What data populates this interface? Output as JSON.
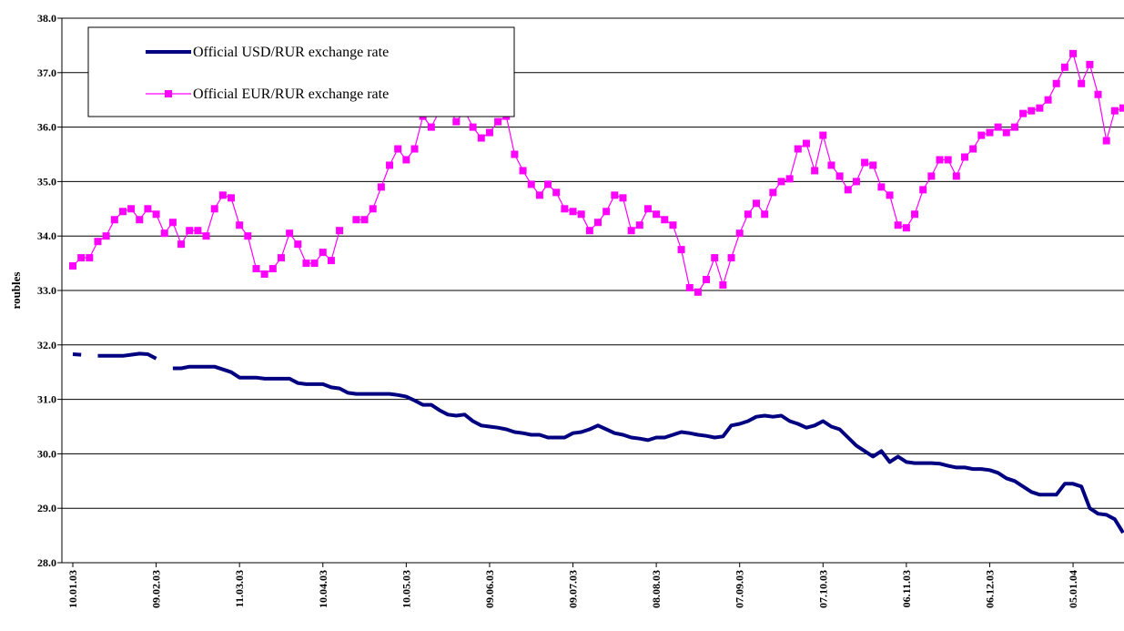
{
  "chart_data": {
    "type": "line",
    "ylabel": "roubles",
    "categories": [
      "10.01.03",
      null,
      null,
      null,
      null,
      null,
      null,
      null,
      null,
      null,
      "09.02.03",
      null,
      null,
      null,
      null,
      null,
      null,
      null,
      null,
      null,
      "11.03.03",
      null,
      null,
      null,
      null,
      null,
      null,
      null,
      null,
      null,
      "10.04.03",
      null,
      null,
      null,
      null,
      null,
      null,
      null,
      null,
      null,
      "10.05.03",
      null,
      null,
      null,
      null,
      null,
      null,
      null,
      null,
      null,
      "09.06.03",
      null,
      null,
      null,
      null,
      null,
      null,
      null,
      null,
      null,
      "09.07.03",
      null,
      null,
      null,
      null,
      null,
      null,
      null,
      null,
      null,
      "08.08.03",
      null,
      null,
      null,
      null,
      null,
      null,
      null,
      null,
      null,
      "07.09.03",
      null,
      null,
      null,
      null,
      null,
      null,
      null,
      null,
      null,
      "07.10.03",
      null,
      null,
      null,
      null,
      null,
      null,
      null,
      null,
      null,
      "06.11.03",
      null,
      null,
      null,
      null,
      null,
      null,
      null,
      null,
      null,
      "06.12.03",
      null,
      null,
      null,
      null,
      null,
      null,
      null,
      null,
      null,
      "05.01.04",
      null,
      null,
      null,
      null,
      null,
      null
    ],
    "series": [
      {
        "name": "Official USD/RUR exchange rate",
        "color": "#000080",
        "marker": false,
        "values": [
          31.83,
          31.82,
          null,
          31.8,
          31.8,
          31.8,
          31.8,
          31.82,
          31.84,
          31.83,
          31.75,
          null,
          31.57,
          31.57,
          31.6,
          31.6,
          31.6,
          31.6,
          31.55,
          31.5,
          31.4,
          31.4,
          31.4,
          31.38,
          31.38,
          31.38,
          31.38,
          31.3,
          31.28,
          31.28,
          31.28,
          31.22,
          31.2,
          31.12,
          31.1,
          31.1,
          31.1,
          31.1,
          31.1,
          31.08,
          31.05,
          30.98,
          30.9,
          30.9,
          30.8,
          30.72,
          30.7,
          30.72,
          30.6,
          30.52,
          30.5,
          30.48,
          30.45,
          30.4,
          30.38,
          30.35,
          30.35,
          30.3,
          30.3,
          30.3,
          30.38,
          30.4,
          30.45,
          30.52,
          30.45,
          30.38,
          30.35,
          30.3,
          30.28,
          30.25,
          30.3,
          30.3,
          30.35,
          30.4,
          30.38,
          30.35,
          30.33,
          30.3,
          30.32,
          30.52,
          30.55,
          30.6,
          30.68,
          30.7,
          30.68,
          30.7,
          30.6,
          30.55,
          30.48,
          30.52,
          30.6,
          30.5,
          30.45,
          30.3,
          30.15,
          30.05,
          29.95,
          30.05,
          29.85,
          29.95,
          29.85,
          29.83,
          29.83,
          29.83,
          29.82,
          29.78,
          29.75,
          29.75,
          29.72,
          29.72,
          29.7,
          29.65,
          29.55,
          29.5,
          29.4,
          29.3,
          29.25,
          29.25,
          29.25,
          29.45,
          29.45,
          29.4,
          29.0,
          28.9,
          28.88,
          28.8,
          28.55
        ]
      },
      {
        "name": "Official EUR/RUR exchange rate",
        "color": "#ff00ff",
        "marker": true,
        "values": [
          33.45,
          33.6,
          33.6,
          33.9,
          34.0,
          34.3,
          34.45,
          34.5,
          34.3,
          34.5,
          34.4,
          34.05,
          34.25,
          33.85,
          34.1,
          34.1,
          34.0,
          34.5,
          34.75,
          34.7,
          34.2,
          34.0,
          33.4,
          33.3,
          33.4,
          33.6,
          34.05,
          33.85,
          33.5,
          33.5,
          33.7,
          33.55,
          34.1,
          null,
          34.3,
          34.3,
          34.5,
          34.9,
          35.3,
          35.6,
          35.4,
          35.6,
          36.2,
          36.0,
          36.3,
          36.4,
          36.1,
          36.3,
          36.0,
          35.8,
          35.9,
          36.1,
          36.2,
          35.5,
          35.2,
          34.95,
          34.75,
          34.95,
          34.8,
          34.5,
          34.45,
          34.4,
          34.1,
          34.25,
          34.45,
          34.75,
          34.7,
          34.1,
          34.2,
          34.5,
          34.4,
          34.3,
          34.2,
          33.75,
          33.05,
          32.97,
          33.2,
          33.6,
          33.1,
          33.6,
          34.05,
          34.4,
          34.6,
          34.4,
          34.8,
          35.0,
          35.05,
          35.6,
          35.7,
          35.2,
          35.85,
          35.3,
          35.1,
          34.85,
          35.0,
          35.35,
          35.3,
          34.9,
          34.75,
          34.2,
          34.15,
          34.4,
          34.85,
          35.1,
          35.4,
          35.4,
          35.1,
          35.45,
          35.6,
          35.85,
          35.9,
          36.0,
          35.9,
          36.0,
          36.25,
          36.3,
          36.35,
          36.5,
          36.8,
          37.1,
          37.35,
          36.8,
          37.15,
          36.6,
          35.75,
          36.3,
          36.35
        ]
      }
    ],
    "ylim": [
      28,
      38
    ],
    "yticks": [
      {
        "value": 28,
        "label": "28.0"
      },
      {
        "value": 29,
        "label": "29.0"
      },
      {
        "value": 30,
        "label": "30.0"
      },
      {
        "value": 31,
        "label": "31.0"
      },
      {
        "value": 32,
        "label": "32.0"
      },
      {
        "value": 33,
        "label": "33.0"
      },
      {
        "value": 34,
        "label": "34.0"
      },
      {
        "value": 35,
        "label": "35.0"
      },
      {
        "value": 36,
        "label": "36.0"
      },
      {
        "value": 37,
        "label": "37.0"
      },
      {
        "value": 38,
        "label": "38.0"
      }
    ],
    "grid": true,
    "legend": "upper left"
  }
}
